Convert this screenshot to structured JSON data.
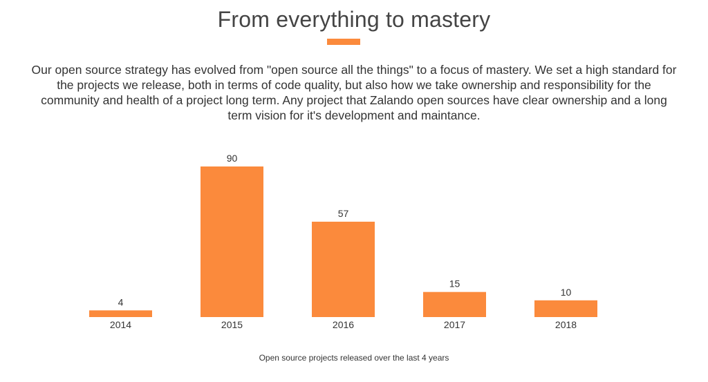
{
  "heading": {
    "title": "From everything to mastery",
    "accent_color": "#fb8a3c"
  },
  "intro_text": "Our open source strategy has evolved from \"open source all the things\" to a focus of mastery. We set a high standard for the projects we release, both in terms of code quality, but also how we take ownership and responsibility for the community and health of a project long term. Any project that Zalando open sources have clear ownership and a long term vision for it's development and maintance.",
  "chart_data": {
    "type": "bar",
    "categories": [
      "2014",
      "2015",
      "2016",
      "2017",
      "2018"
    ],
    "values": [
      4,
      90,
      57,
      15,
      10
    ],
    "title": "",
    "xlabel": "",
    "ylabel": "",
    "ylim": [
      0,
      90
    ],
    "bar_color": "#fb8a3c",
    "grid": false,
    "legend": "none",
    "data_labels": true
  },
  "caption": "Open source projects released over the last 4 years"
}
